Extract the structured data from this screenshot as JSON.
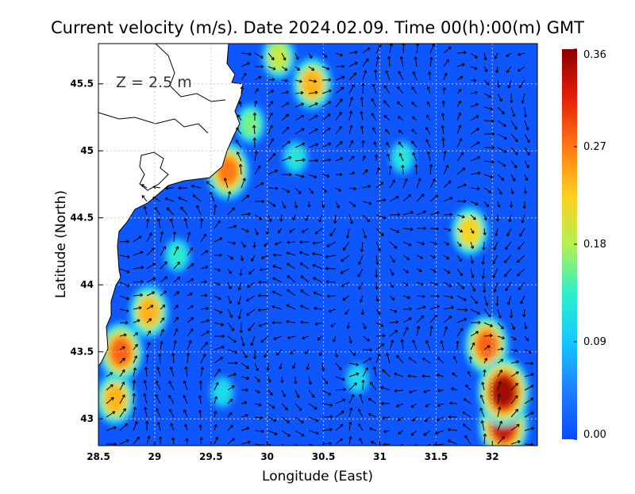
{
  "chart_data": {
    "type": "heatmap",
    "title": "Current velocity (m/s). Date 2024.02.09. Time 00(h):00(m) GMT",
    "annotation": "Z = 2.5 m",
    "xlabel": "Longitude (East)",
    "ylabel": "Latitude (North)",
    "xlim": [
      28.5,
      32.4
    ],
    "ylim": [
      42.8,
      45.8
    ],
    "x_ticks": [
      28.5,
      29,
      29.5,
      30,
      30.5,
      31,
      31.5,
      32
    ],
    "x_tick_labels": [
      "28.5",
      "29",
      "29.5",
      "30",
      "30.5",
      "31",
      "31.5",
      "32"
    ],
    "y_ticks": [
      43,
      43.5,
      44,
      44.5,
      45,
      45.5
    ],
    "y_tick_labels": [
      "43",
      "43.5",
      "44",
      "44.5",
      "45",
      "45.5"
    ],
    "grid": true,
    "colorbar": {
      "min": 0.0,
      "max": 0.36,
      "ticks": [
        0.0,
        0.09,
        0.18,
        0.27,
        0.36
      ],
      "tick_labels": [
        "0.00",
        "0.09",
        "0.18",
        "0.27",
        "0.36"
      ],
      "colors": [
        "#0a4bff",
        "#1e7dff",
        "#14c8ff",
        "#2df0c8",
        "#b4f050",
        "#ffd01e",
        "#ff7814",
        "#e61e0a",
        "#8c0000"
      ]
    },
    "hotspots": [
      {
        "lon": 28.7,
        "lat": 43.5,
        "speed": 0.28
      },
      {
        "lon": 28.95,
        "lat": 43.8,
        "speed": 0.24
      },
      {
        "lon": 28.65,
        "lat": 43.15,
        "speed": 0.24
      },
      {
        "lon": 32.1,
        "lat": 43.2,
        "speed": 0.35
      },
      {
        "lon": 31.95,
        "lat": 43.55,
        "speed": 0.28
      },
      {
        "lon": 32.1,
        "lat": 42.95,
        "speed": 0.33
      },
      {
        "lon": 31.8,
        "lat": 44.4,
        "speed": 0.22
      },
      {
        "lon": 30.4,
        "lat": 45.5,
        "speed": 0.24
      },
      {
        "lon": 30.1,
        "lat": 45.7,
        "speed": 0.19
      },
      {
        "lon": 29.65,
        "lat": 44.85,
        "speed": 0.27
      },
      {
        "lon": 29.85,
        "lat": 45.2,
        "speed": 0.16
      },
      {
        "lon": 31.2,
        "lat": 44.95,
        "speed": 0.12
      },
      {
        "lon": 30.25,
        "lat": 44.95,
        "speed": 0.12
      },
      {
        "lon": 29.2,
        "lat": 44.22,
        "speed": 0.13
      },
      {
        "lon": 30.8,
        "lat": 43.3,
        "speed": 0.11
      },
      {
        "lon": 29.6,
        "lat": 43.2,
        "speed": 0.11
      }
    ]
  }
}
